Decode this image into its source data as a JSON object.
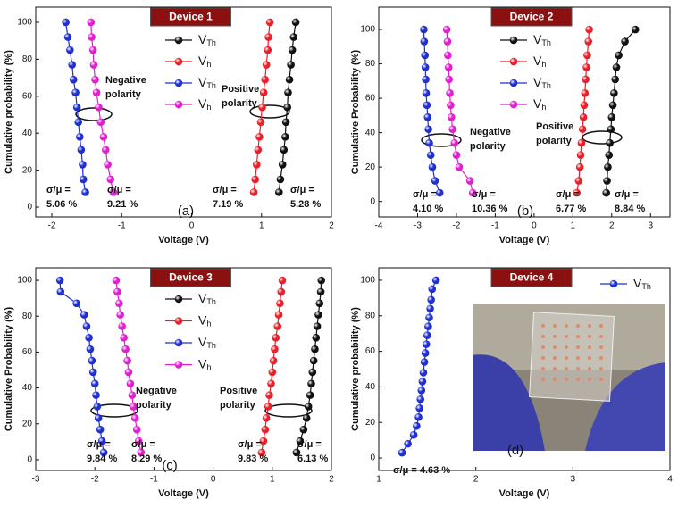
{
  "chart_data": [
    {
      "type": "line",
      "title": "Device 1",
      "panel_label": "(a)",
      "x_label": "Voltage (V)",
      "y_label": "Cumulative probability (%)",
      "xlim": [
        -2.23,
        2
      ],
      "xticks": [
        -2,
        -1,
        0,
        1,
        2
      ],
      "ylim": [
        -5.3,
        108.2
      ],
      "yticks": [
        0,
        20,
        40,
        60,
        80,
        100
      ],
      "series": [
        {
          "name": "VTh",
          "color": "#111111",
          "x": [
            1.25,
            1.27,
            1.3,
            1.32,
            1.34,
            1.35,
            1.37,
            1.38,
            1.4,
            1.42,
            1.44,
            1.46,
            1.49
          ],
          "values": [
            8,
            15,
            23,
            31,
            38,
            46,
            54,
            62,
            69,
            77,
            85,
            92,
            100
          ]
        },
        {
          "name": "Vh",
          "color": "#e8202a",
          "x": [
            0.89,
            0.91,
            0.93,
            0.95,
            0.97,
            0.99,
            1.01,
            1.03,
            1.05,
            1.07,
            1.09,
            1.1,
            1.12
          ],
          "values": [
            8,
            15,
            23,
            31,
            38,
            46,
            54,
            62,
            69,
            77,
            85,
            92,
            100
          ]
        },
        {
          "name": "VTh",
          "color": "#1f2fd0",
          "x": [
            -1.52,
            -1.55,
            -1.56,
            -1.58,
            -1.6,
            -1.62,
            -1.64,
            -1.66,
            -1.69,
            -1.71,
            -1.74,
            -1.77,
            -1.8
          ],
          "values": [
            8,
            15,
            23,
            31,
            38,
            46,
            54,
            62,
            69,
            77,
            85,
            92,
            100
          ]
        },
        {
          "name": "Vh",
          "color": "#e020d0",
          "x": [
            -1.12,
            -1.16,
            -1.2,
            -1.23,
            -1.26,
            -1.3,
            -1.33,
            -1.36,
            -1.38,
            -1.4,
            -1.41,
            -1.43,
            -1.44
          ],
          "values": [
            8,
            15,
            23,
            31,
            38,
            46,
            54,
            62,
            69,
            77,
            85,
            92,
            100
          ]
        }
      ],
      "annotations": [
        [
          "Negative",
          "polarity"
        ],
        [
          "Positive",
          "polarity"
        ],
        [
          "σ/μ =",
          "5.06 %"
        ],
        [
          "σ/μ =",
          "9.21 %"
        ],
        [
          "σ/μ =",
          "7.19 %"
        ],
        [
          "σ/μ =",
          "5.28 %"
        ]
      ]
    },
    {
      "type": "line",
      "title": "Device 2",
      "panel_label": "(b)",
      "x_label": "Voltage (V)",
      "y_label": "Cumulative Probability (%)",
      "xlim": [
        -4,
        3.5
      ],
      "xticks": [
        -4,
        -3,
        -2,
        -1,
        0,
        1,
        2,
        3
      ],
      "ylim": [
        -9,
        113
      ],
      "yticks": [
        0,
        20,
        40,
        60,
        80,
        100
      ],
      "series": [
        {
          "name": "VTh",
          "color": "#111111",
          "x": [
            1.86,
            1.88,
            1.9,
            1.93,
            1.95,
            1.98,
            2.0,
            2.03,
            2.06,
            2.09,
            2.12,
            2.18,
            2.34,
            2.61
          ],
          "values": [
            5,
            12,
            20,
            27,
            34,
            42,
            49,
            56,
            63,
            71,
            78,
            85,
            93,
            100
          ]
        },
        {
          "name": "Vh",
          "color": "#e8202a",
          "x": [
            1.1,
            1.15,
            1.18,
            1.2,
            1.22,
            1.25,
            1.27,
            1.29,
            1.31,
            1.33,
            1.35,
            1.37,
            1.4,
            1.42
          ],
          "values": [
            5,
            12,
            20,
            27,
            34,
            42,
            49,
            56,
            63,
            71,
            78,
            85,
            93,
            100
          ]
        },
        {
          "name": "VTh",
          "color": "#1f2fd0",
          "x": [
            -2.43,
            -2.55,
            -2.62,
            -2.66,
            -2.7,
            -2.72,
            -2.74,
            -2.76,
            -2.78,
            -2.79,
            -2.8,
            -2.81,
            -2.83,
            -2.84
          ],
          "values": [
            5,
            12,
            20,
            27,
            34,
            42,
            49,
            56,
            63,
            71,
            78,
            85,
            93,
            100
          ]
        },
        {
          "name": "Vh",
          "color": "#e020d0",
          "x": [
            -1.58,
            -1.65,
            -1.93,
            -2.0,
            -2.05,
            -2.1,
            -2.13,
            -2.15,
            -2.17,
            -2.19,
            -2.2,
            -2.22,
            -2.23,
            -2.25
          ],
          "values": [
            5,
            12,
            20,
            27,
            34,
            42,
            49,
            56,
            63,
            71,
            78,
            85,
            93,
            100
          ]
        }
      ],
      "annotations": [
        [
          "Negative",
          "polarity"
        ],
        [
          "Positive",
          "polarity"
        ],
        [
          "σ/μ =",
          "4.10 %"
        ],
        [
          "σ/μ =",
          "10.36 %"
        ],
        [
          "σ/μ =",
          "6.77 %"
        ],
        [
          "σ/μ =",
          "8.84 %"
        ]
      ]
    },
    {
      "type": "line",
      "title": "Device 3",
      "panel_label": "(c)",
      "x_label": "Voltage (V)",
      "y_label": "Cumulative Probability (%)",
      "xlim": [
        -3,
        2
      ],
      "xticks": [
        -3,
        -2,
        -1,
        0,
        1,
        2
      ],
      "ylim": [
        -6,
        107
      ],
      "yticks": [
        0,
        20,
        40,
        60,
        80,
        100
      ],
      "series": [
        {
          "name": "VTh",
          "color": "#111111",
          "x": [
            1.41,
            1.47,
            1.53,
            1.58,
            1.61,
            1.64,
            1.66,
            1.68,
            1.7,
            1.72,
            1.74,
            1.76,
            1.78,
            1.8,
            1.82,
            1.83
          ],
          "values": [
            4,
            10.4,
            16.8,
            23.2,
            29.6,
            36,
            42.4,
            48.8,
            55.2,
            61.6,
            68,
            74.4,
            80.8,
            87.2,
            93.6,
            100
          ]
        },
        {
          "name": "Vh",
          "color": "#e8202a",
          "x": [
            0.82,
            0.85,
            0.88,
            0.9,
            0.93,
            0.95,
            0.98,
            1.0,
            1.02,
            1.04,
            1.06,
            1.09,
            1.11,
            1.13,
            1.15,
            1.17
          ],
          "values": [
            4,
            10.4,
            16.8,
            23.2,
            29.6,
            36,
            42.4,
            48.8,
            55.2,
            61.6,
            68,
            74.4,
            80.8,
            87.2,
            93.6,
            100
          ]
        },
        {
          "name": "VTh",
          "color": "#1f2fd0",
          "x": [
            -1.85,
            -1.88,
            -1.91,
            -1.94,
            -1.96,
            -1.98,
            -2.0,
            -2.03,
            -2.05,
            -2.08,
            -2.1,
            -2.14,
            -2.18,
            -2.31,
            -2.58,
            -2.59
          ],
          "values": [
            4,
            10.4,
            16.8,
            23.2,
            29.6,
            36,
            42.4,
            48.8,
            55.2,
            61.6,
            68,
            74.4,
            80.8,
            87.2,
            93.6,
            100
          ]
        },
        {
          "name": "Vh",
          "color": "#e020d0",
          "x": [
            -1.22,
            -1.26,
            -1.29,
            -1.32,
            -1.35,
            -1.37,
            -1.4,
            -1.43,
            -1.45,
            -1.48,
            -1.51,
            -1.54,
            -1.57,
            -1.59,
            -1.62,
            -1.64
          ],
          "values": [
            4,
            10.4,
            16.8,
            23.2,
            29.6,
            36,
            42.4,
            48.8,
            55.2,
            61.6,
            68,
            74.4,
            80.8,
            87.2,
            93.6,
            100
          ]
        }
      ],
      "annotations": [
        [
          "Negative",
          "polarity"
        ],
        [
          "Positive",
          "polarity"
        ],
        [
          "σ/μ =",
          "9.84 %"
        ],
        [
          "σ/μ =",
          "8.29 %"
        ],
        [
          "σ/μ =",
          "9.83 %"
        ],
        [
          "σ/μ =",
          "6.13 %"
        ]
      ]
    },
    {
      "type": "line",
      "title": "Device 4",
      "panel_label": "(d)",
      "x_label": "Voltage (V)",
      "y_label": "Cumulative probability (%)",
      "xlim": [
        1,
        4
      ],
      "xticks": [
        1,
        2,
        3,
        4
      ],
      "ylim": [
        -7,
        107
      ],
      "yticks": [
        0,
        20,
        40,
        60,
        80,
        100
      ],
      "series": [
        {
          "name": "VTh",
          "color": "#1f2fd0",
          "x": [
            1.24,
            1.3,
            1.36,
            1.39,
            1.41,
            1.42,
            1.43,
            1.44,
            1.45,
            1.46,
            1.47,
            1.48,
            1.49,
            1.5,
            1.51,
            1.52,
            1.53,
            1.54,
            1.55,
            1.59
          ],
          "values": [
            3,
            8,
            13,
            18,
            23,
            28,
            33,
            38,
            43,
            48,
            54,
            59,
            64,
            69,
            74,
            79,
            84,
            89,
            95,
            100
          ]
        }
      ],
      "annotations": [
        [
          "σ/μ = 4.63 %"
        ]
      ]
    }
  ]
}
